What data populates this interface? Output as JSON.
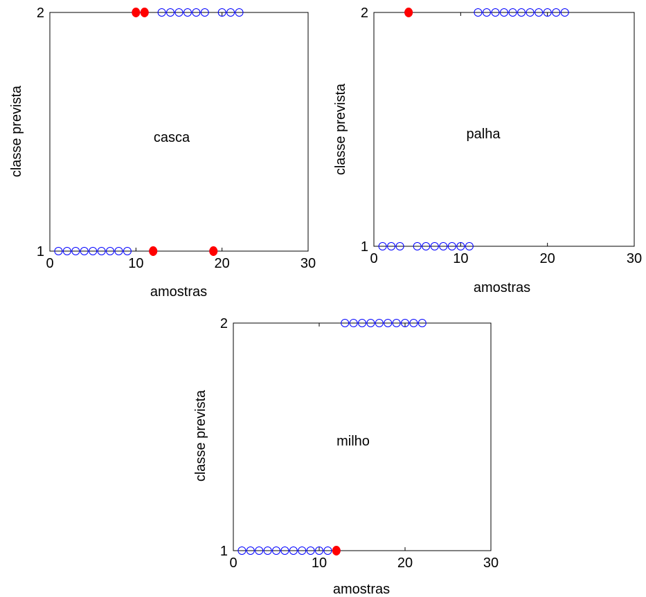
{
  "colors": {
    "correct_marker": "#0000ff",
    "error_marker": "#ff0000",
    "axes": "#000000",
    "background": "#ffffff"
  },
  "chart_data": [
    {
      "type": "scatter",
      "title": "casca",
      "xlabel": "amostras",
      "ylabel": "classe prevista",
      "xlim": [
        0,
        30
      ],
      "ylim": [
        1,
        2
      ],
      "xticks": [
        0,
        10,
        20,
        30
      ],
      "yticks": [
        1,
        2
      ],
      "grid": false,
      "series": [
        {
          "marker": "open-circle",
          "x": [
            1,
            2,
            3,
            4,
            5,
            6,
            7,
            8,
            9,
            12,
            19
          ],
          "y": [
            1,
            1,
            1,
            1,
            1,
            1,
            1,
            1,
            1,
            1,
            1
          ]
        },
        {
          "marker": "open-circle",
          "x": [
            10,
            11,
            13,
            14,
            15,
            16,
            17,
            18,
            20,
            21,
            22
          ],
          "y": [
            2,
            2,
            2,
            2,
            2,
            2,
            2,
            2,
            2,
            2,
            2
          ]
        },
        {
          "marker": "filled-circle",
          "x": [
            10,
            11,
            12,
            19
          ],
          "y": [
            2,
            2,
            1,
            1
          ]
        }
      ]
    },
    {
      "type": "scatter",
      "title": "palha",
      "xlabel": "amostras",
      "ylabel": "classe prevista",
      "xlim": [
        0,
        30
      ],
      "ylim": [
        1,
        2
      ],
      "xticks": [
        0,
        10,
        20,
        30
      ],
      "yticks": [
        1,
        2
      ],
      "grid": false,
      "series": [
        {
          "marker": "open-circle",
          "x": [
            1,
            2,
            3,
            5,
            6,
            7,
            8,
            9,
            10,
            11
          ],
          "y": [
            1,
            1,
            1,
            1,
            1,
            1,
            1,
            1,
            1,
            1
          ]
        },
        {
          "marker": "open-circle",
          "x": [
            4,
            12,
            13,
            14,
            15,
            16,
            17,
            18,
            19,
            20,
            21,
            22
          ],
          "y": [
            2,
            2,
            2,
            2,
            2,
            2,
            2,
            2,
            2,
            2,
            2,
            2
          ]
        },
        {
          "marker": "filled-circle",
          "x": [
            4
          ],
          "y": [
            2
          ]
        }
      ]
    },
    {
      "type": "scatter",
      "title": "milho",
      "xlabel": "amostras",
      "ylabel": "classe prevista",
      "xlim": [
        0,
        30
      ],
      "ylim": [
        1,
        2
      ],
      "xticks": [
        0,
        10,
        20,
        30
      ],
      "yticks": [
        1,
        2
      ],
      "grid": false,
      "series": [
        {
          "marker": "open-circle",
          "x": [
            1,
            2,
            3,
            4,
            5,
            6,
            7,
            8,
            9,
            10,
            11,
            12
          ],
          "y": [
            1,
            1,
            1,
            1,
            1,
            1,
            1,
            1,
            1,
            1,
            1,
            1
          ]
        },
        {
          "marker": "open-circle",
          "x": [
            13,
            14,
            15,
            16,
            17,
            18,
            19,
            20,
            21,
            22
          ],
          "y": [
            2,
            2,
            2,
            2,
            2,
            2,
            2,
            2,
            2,
            2
          ]
        },
        {
          "marker": "filled-circle",
          "x": [
            12
          ],
          "y": [
            1
          ]
        }
      ]
    }
  ]
}
